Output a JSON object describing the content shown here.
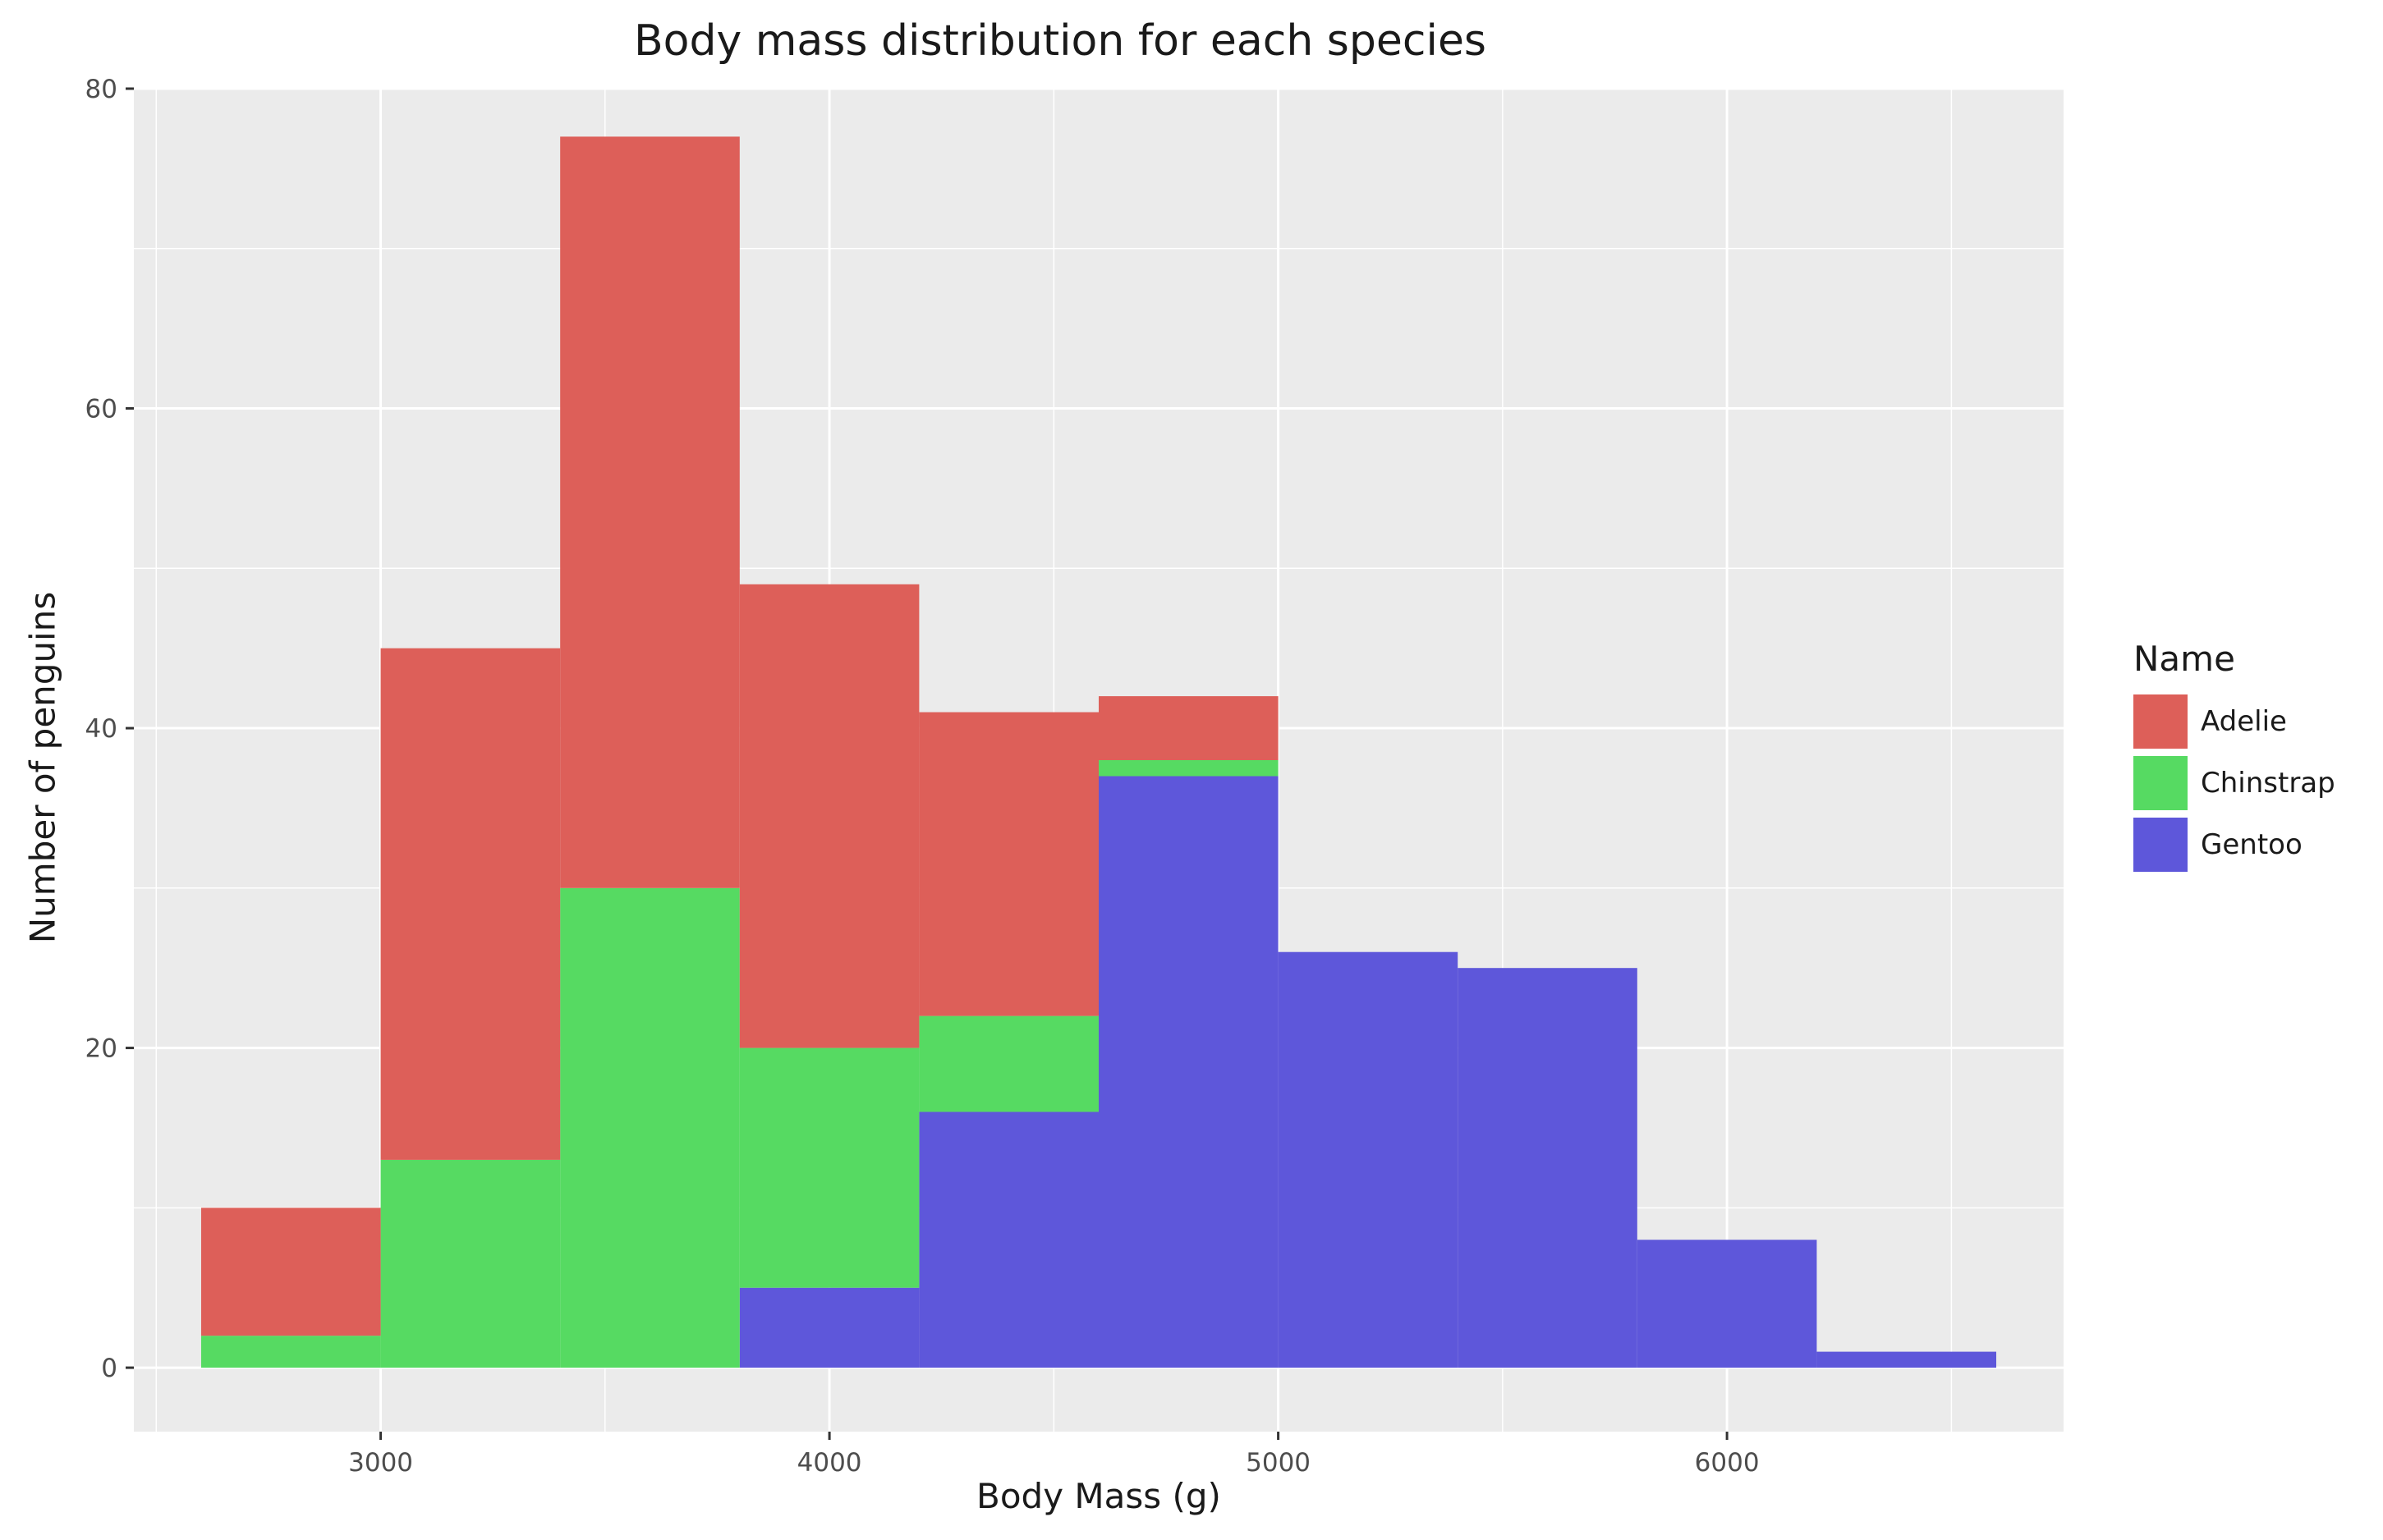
{
  "chart_data": {
    "type": "bar",
    "title": "Body mass distribution for each species",
    "xlabel": "Body Mass (g)",
    "ylabel": "Number of penguins",
    "bin_edges": [
      2600,
      3000,
      3400,
      3800,
      4200,
      4600,
      5000,
      5400,
      5800,
      6200,
      6600
    ],
    "stacked": true,
    "legend_title": "Name",
    "legend_position": "right",
    "grid": true,
    "xlim": [
      2450,
      6750
    ],
    "ylim": [
      -4,
      80
    ],
    "xticks": [
      3000,
      4000,
      5000,
      6000
    ],
    "yticks": [
      0,
      20,
      40,
      60,
      80
    ],
    "series": [
      {
        "name": "Gentoo",
        "color": "#5e57da",
        "values": [
          0,
          0,
          0,
          5,
          16,
          37,
          26,
          25,
          8,
          1
        ]
      },
      {
        "name": "Chinstrap",
        "color": "#56da62",
        "values": [
          2,
          13,
          30,
          15,
          6,
          1,
          0,
          0,
          0,
          0
        ]
      },
      {
        "name": "Adelie",
        "color": "#dd5f59",
        "values": [
          8,
          32,
          47,
          29,
          19,
          4,
          0,
          0,
          0,
          0
        ]
      }
    ],
    "legend_order": [
      "Adelie",
      "Chinstrap",
      "Gentoo"
    ],
    "legend_colors": [
      "#dd5f59",
      "#56da62",
      "#5e57da"
    ]
  }
}
